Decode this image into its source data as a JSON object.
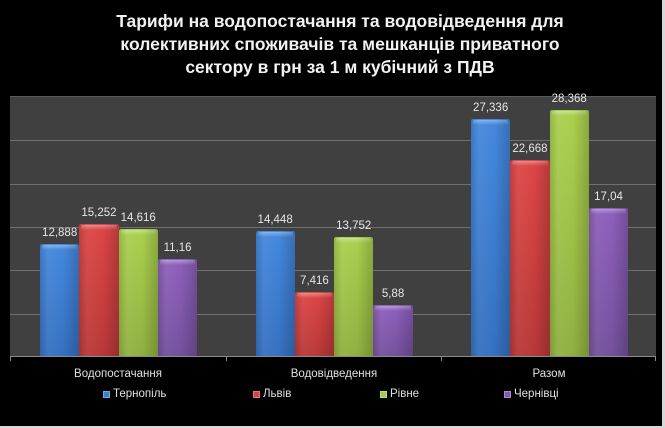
{
  "title": {
    "line1": "Тарифи на водопостачання та водовідведення для",
    "line2": "колективних споживачів та мешканців приватного",
    "line3": "сектору в грн за 1 м кубічний з ПДВ"
  },
  "categories": [
    "Водопостачання",
    "Водовідведення",
    "Разом"
  ],
  "series": [
    {
      "name": "Тернопіль",
      "color": "#3b7ed6",
      "values": [
        12.888,
        14.448,
        27.336
      ],
      "labels": [
        "12,888",
        "14,448",
        "27,336"
      ]
    },
    {
      "name": "Львів",
      "color": "#d54242",
      "values": [
        15.252,
        7.416,
        22.668
      ],
      "labels": [
        "15,252",
        "7,416",
        "22,668"
      ]
    },
    {
      "name": "Рівне",
      "color": "#a3c94a",
      "values": [
        14.616,
        13.752,
        28.368
      ],
      "labels": [
        "14,616",
        "13,752",
        "28,368"
      ]
    },
    {
      "name": "Чернівці",
      "color": "#8558b2",
      "values": [
        11.16,
        5.88,
        17.04
      ],
      "labels": [
        "11,16",
        "5,88",
        "17,04"
      ]
    }
  ],
  "chart_data": {
    "type": "bar",
    "title": "Тарифи на водопостачання та водовідведення для колективних споживачів та мешканців приватного сектору в грн за 1 м кубічний з ПДВ",
    "categories": [
      "Водопостачання",
      "Водовідведення",
      "Разом"
    ],
    "series": [
      {
        "name": "Тернопіль",
        "values": [
          12.888,
          14.448,
          27.336
        ]
      },
      {
        "name": "Львів",
        "values": [
          15.252,
          7.416,
          22.668
        ]
      },
      {
        "name": "Рівне",
        "values": [
          14.616,
          13.752,
          28.368
        ]
      },
      {
        "name": "Чернівці",
        "values": [
          11.16,
          5.88,
          17.04
        ]
      }
    ],
    "xlabel": "",
    "ylabel": "",
    "ylim": [
      0,
      30
    ],
    "y_gridlines": [
      5,
      10,
      15,
      20,
      25,
      30
    ],
    "y_tick_labels_visible": false,
    "grid": true,
    "legend_position": "bottom",
    "data_labels": true
  }
}
